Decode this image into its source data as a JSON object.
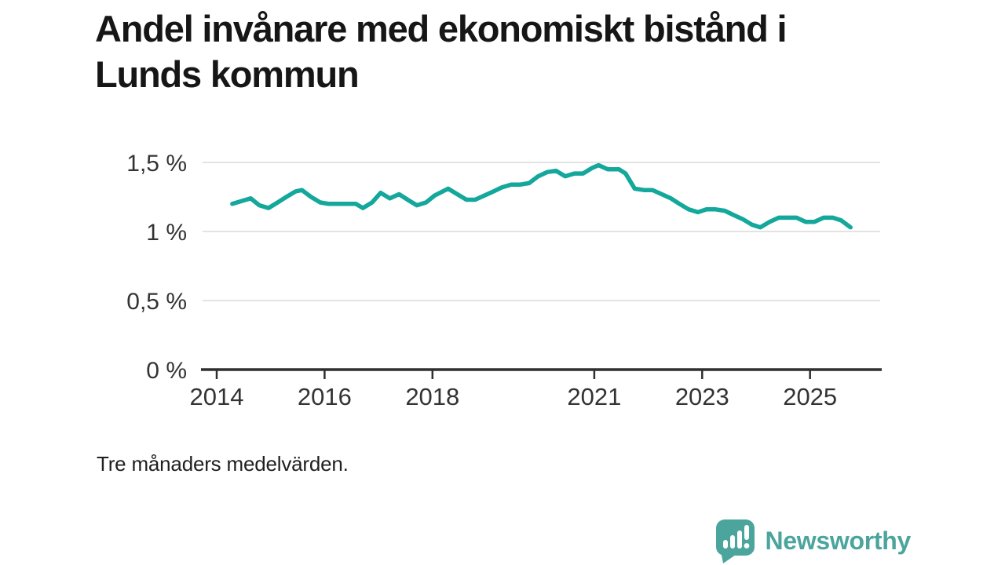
{
  "title": "Andel invånare med ekonomiskt bistånd i Lunds kommun",
  "footnote": "Tre månaders medelvärden.",
  "branding": {
    "name": "Newsworthy",
    "icon": "newsworthy-speech-bubble-bar-chart-icon",
    "color": "#4ba59d"
  },
  "colors": {
    "background": "#ffffff",
    "title_text": "#161616",
    "footnote_text": "#1f1f1f",
    "line": "#14a79b",
    "grid": "#e3e3e3",
    "axis": "#2f2f2f",
    "tick_text": "#333333"
  },
  "chart_data": {
    "type": "line",
    "title": "Andel invånare med ekonomiskt bistånd i Lunds kommun",
    "xlabel": "",
    "ylabel": "",
    "unit": "%",
    "grid": true,
    "legend": "none",
    "xlim": [
      2013.7,
      2026.3
    ],
    "ylim": [
      0,
      1.65
    ],
    "x_ticks": [
      {
        "label": "2014",
        "year": 2014
      },
      {
        "label": "2016",
        "year": 2016
      },
      {
        "label": "2018",
        "year": 2018
      },
      {
        "label": "2021",
        "year": 2021
      },
      {
        "label": "2023",
        "year": 2023
      },
      {
        "label": "2025",
        "year": 2025
      }
    ],
    "y_ticks": [
      {
        "label": "0 %",
        "value": 0
      },
      {
        "label": "0,5 %",
        "value": 0.5
      },
      {
        "label": "1 %",
        "value": 1
      },
      {
        "label": "1,5 %",
        "value": 1.5
      }
    ],
    "series": [
      {
        "name": "Andel invånare med ekonomiskt bistånd, Lunds kommun",
        "color": "#14a79b",
        "points": [
          [
            2014.29,
            1.2
          ],
          [
            2014.46,
            1.22
          ],
          [
            2014.63,
            1.24
          ],
          [
            2014.79,
            1.19
          ],
          [
            2014.96,
            1.17
          ],
          [
            2015.13,
            1.21
          ],
          [
            2015.29,
            1.25
          ],
          [
            2015.46,
            1.29
          ],
          [
            2015.58,
            1.3
          ],
          [
            2015.75,
            1.25
          ],
          [
            2015.92,
            1.21
          ],
          [
            2016.08,
            1.2
          ],
          [
            2016.25,
            1.2
          ],
          [
            2016.42,
            1.2
          ],
          [
            2016.58,
            1.2
          ],
          [
            2016.71,
            1.17
          ],
          [
            2016.88,
            1.21
          ],
          [
            2017.04,
            1.28
          ],
          [
            2017.21,
            1.24
          ],
          [
            2017.38,
            1.27
          ],
          [
            2017.54,
            1.23
          ],
          [
            2017.71,
            1.19
          ],
          [
            2017.88,
            1.21
          ],
          [
            2018.04,
            1.26
          ],
          [
            2018.29,
            1.31
          ],
          [
            2018.46,
            1.27
          ],
          [
            2018.63,
            1.23
          ],
          [
            2018.79,
            1.23
          ],
          [
            2018.96,
            1.26
          ],
          [
            2019.13,
            1.29
          ],
          [
            2019.29,
            1.32
          ],
          [
            2019.46,
            1.34
          ],
          [
            2019.63,
            1.34
          ],
          [
            2019.79,
            1.35
          ],
          [
            2019.96,
            1.4
          ],
          [
            2020.13,
            1.43
          ],
          [
            2020.29,
            1.44
          ],
          [
            2020.46,
            1.4
          ],
          [
            2020.63,
            1.42
          ],
          [
            2020.79,
            1.42
          ],
          [
            2020.96,
            1.46
          ],
          [
            2021.08,
            1.48
          ],
          [
            2021.25,
            1.45
          ],
          [
            2021.46,
            1.45
          ],
          [
            2021.58,
            1.42
          ],
          [
            2021.75,
            1.31
          ],
          [
            2021.92,
            1.3
          ],
          [
            2022.08,
            1.3
          ],
          [
            2022.25,
            1.27
          ],
          [
            2022.42,
            1.24
          ],
          [
            2022.58,
            1.2
          ],
          [
            2022.75,
            1.16
          ],
          [
            2022.92,
            1.14
          ],
          [
            2023.08,
            1.16
          ],
          [
            2023.25,
            1.16
          ],
          [
            2023.42,
            1.15
          ],
          [
            2023.58,
            1.12
          ],
          [
            2023.75,
            1.09
          ],
          [
            2023.92,
            1.05
          ],
          [
            2024.08,
            1.03
          ],
          [
            2024.25,
            1.07
          ],
          [
            2024.42,
            1.1
          ],
          [
            2024.58,
            1.1
          ],
          [
            2024.75,
            1.1
          ],
          [
            2024.92,
            1.07
          ],
          [
            2025.08,
            1.07
          ],
          [
            2025.25,
            1.1
          ],
          [
            2025.42,
            1.1
          ],
          [
            2025.58,
            1.08
          ],
          [
            2025.75,
            1.03
          ]
        ]
      }
    ]
  }
}
